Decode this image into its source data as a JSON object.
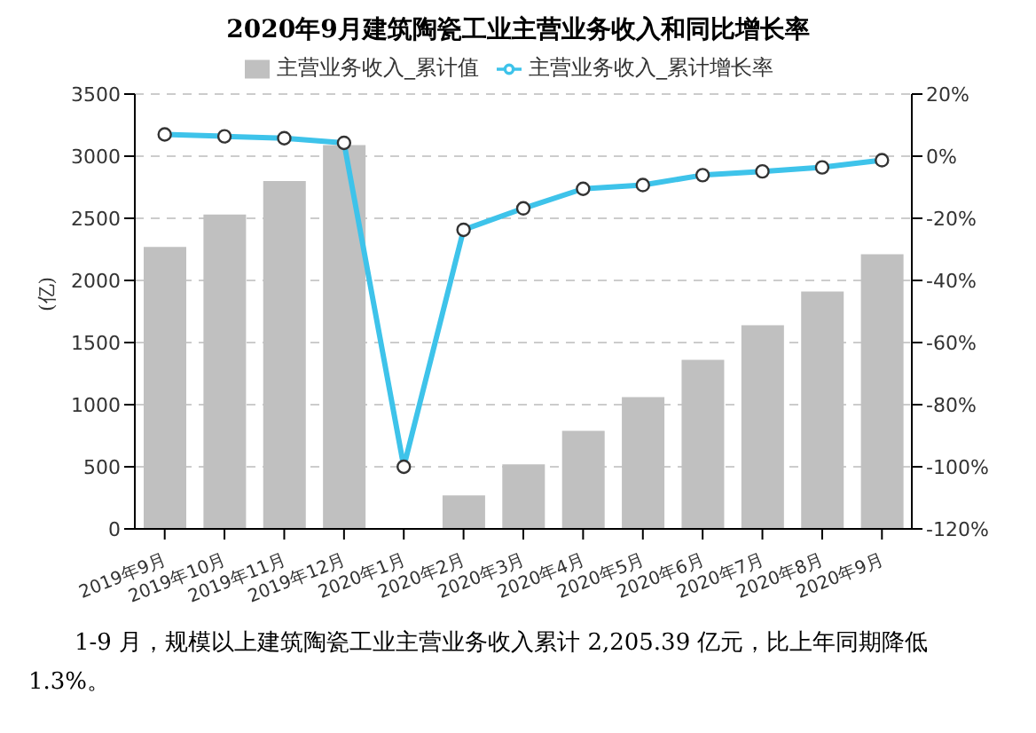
{
  "chart_data": {
    "type": "bar",
    "title": "2020年9月建筑陶瓷工业主营业务收入和同比增长率",
    "ylabel": "(亿)",
    "categories": [
      "2019年9月",
      "2019年10月",
      "2019年11月",
      "2019年12月",
      "2020年1月",
      "2020年2月",
      "2020年3月",
      "2020年4月",
      "2020年5月",
      "2020年6月",
      "2020年7月",
      "2020年8月",
      "2020年9月"
    ],
    "series": [
      {
        "name": "主营业务收入_累计值",
        "color": "#c0c0c0",
        "values": [
          2270,
          2530,
          2800,
          3090,
          null,
          270,
          520,
          790,
          1060,
          1360,
          1640,
          1910,
          2210
        ]
      },
      {
        "name": "主营业务收入_累计增长率",
        "type": "line",
        "axis": "y2",
        "color": "#3ec3ea",
        "marker": "circle",
        "values": [
          7.0,
          6.4,
          5.8,
          4.3,
          -100,
          -23.7,
          -16.8,
          -10.5,
          -9.3,
          -6.1,
          -4.9,
          -3.6,
          -1.3
        ]
      }
    ],
    "ylim": [
      0,
      3500
    ],
    "yticks": [
      0,
      500,
      1000,
      1500,
      2000,
      2500,
      3000,
      3500
    ],
    "y2lim": [
      -120,
      20
    ],
    "y2ticks": [
      {
        "value": -120,
        "label": "-120%"
      },
      {
        "value": -100,
        "label": "-100%"
      },
      {
        "value": -80,
        "label": "-80%"
      },
      {
        "value": -60,
        "label": "-60%"
      },
      {
        "value": -40,
        "label": "-40%"
      },
      {
        "value": -20,
        "label": "-20%"
      },
      {
        "value": 0,
        "label": "0%"
      },
      {
        "value": 20,
        "label": "20%"
      }
    ],
    "grid": "y",
    "legend": "top",
    "annotations": [
      "1-9 月，规模以上建筑陶瓷工业主营业务收入累计 2,205.39 亿元，比上年同期降低 1.3%。"
    ]
  }
}
